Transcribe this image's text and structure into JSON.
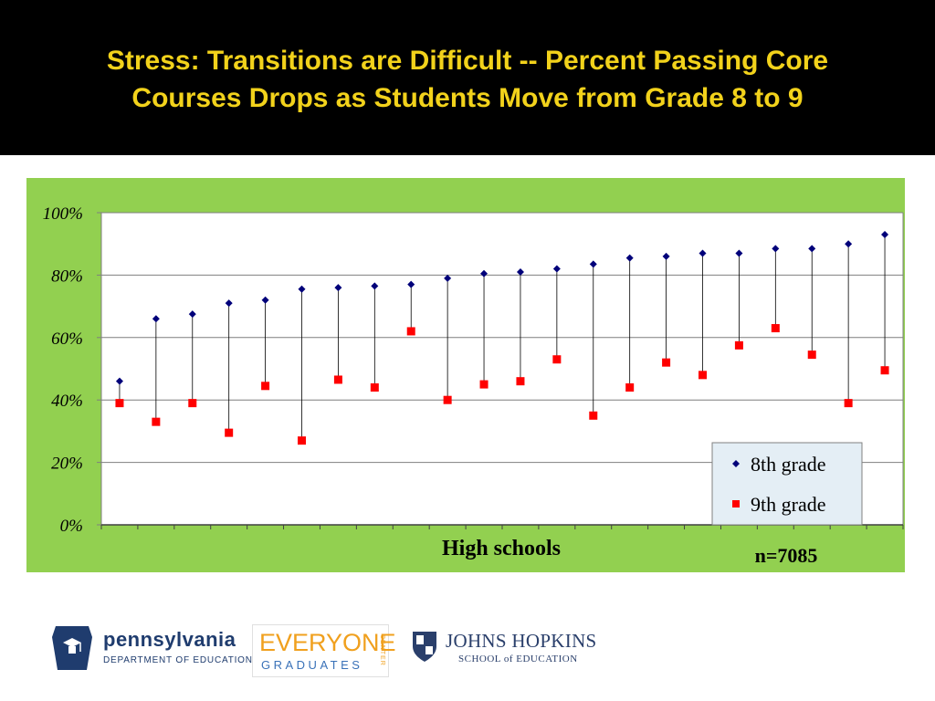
{
  "slide": {
    "title_line1": "Stress: Transitions are Difficult -- Percent Passing Core",
    "title_line2": "Courses Drops as Students Move from Grade 8 to 9"
  },
  "colors": {
    "title_text": "#f2d21b",
    "title_bg": "#000000",
    "chart_bg": "#92d050",
    "series_8th": "#00007a",
    "series_9th": "#ff0000"
  },
  "chart_data": {
    "type": "scatter",
    "xlabel": "High schools",
    "ylabel": "",
    "ylim": [
      0,
      100
    ],
    "y_ticks": [
      "0%",
      "20%",
      "40%",
      "60%",
      "80%",
      "100%"
    ],
    "y_tick_values": [
      0,
      20,
      40,
      60,
      80,
      100
    ],
    "grid": true,
    "legend_position": "bottom-right",
    "annotation": "n=7085",
    "x": [
      1,
      2,
      3,
      4,
      5,
      6,
      7,
      8,
      9,
      10,
      11,
      12,
      13,
      14,
      15,
      16,
      17,
      18,
      19,
      20,
      21,
      22
    ],
    "series": [
      {
        "name": "8th grade",
        "marker": "diamond",
        "values": [
          46,
          66,
          67.5,
          71,
          72,
          75.5,
          76,
          76.5,
          77,
          79,
          80.5,
          81,
          82,
          83.5,
          85.5,
          86,
          87,
          87,
          88.5,
          88.5,
          90,
          93
        ]
      },
      {
        "name": "9th grade",
        "marker": "square",
        "values": [
          39,
          33,
          39,
          29.5,
          44.5,
          27,
          46.5,
          44,
          62,
          40,
          45,
          46,
          53,
          35,
          44,
          52,
          48,
          57.5,
          63,
          54.5,
          39,
          49.5
        ]
      }
    ]
  },
  "logos": {
    "pennsylvania": {
      "name": "pennsylvania",
      "dept": "DEPARTMENT OF EDUCATION"
    },
    "everyone_graduates": {
      "line1": "EVERYONE",
      "line2": "GRADUATES",
      "side": "CENTER"
    },
    "johns_hopkins": {
      "name": "JOHNS HOPKINS",
      "school": "SCHOOL of EDUCATION"
    }
  }
}
